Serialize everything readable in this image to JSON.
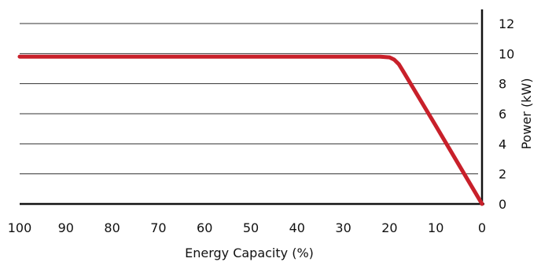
{
  "chart_data": {
    "type": "line",
    "xlabel": "Energy Capacity (%)",
    "ylabel": "Power (kW)",
    "xlim": [
      100,
      0
    ],
    "ylim": [
      0,
      12
    ],
    "x_ticks": [
      100,
      90,
      80,
      70,
      60,
      50,
      40,
      30,
      20,
      10,
      0
    ],
    "y_ticks": [
      0,
      2,
      4,
      6,
      8,
      10,
      12
    ],
    "grid": "horizontal",
    "series": [
      {
        "color": "#c8202a",
        "x": [
          100,
          90,
          80,
          70,
          60,
          50,
          40,
          30,
          22,
          20,
          19,
          18,
          17,
          10,
          5,
          0
        ],
        "y": [
          9.8,
          9.8,
          9.8,
          9.8,
          9.8,
          9.8,
          9.8,
          9.8,
          9.8,
          9.75,
          9.6,
          9.3,
          8.8,
          5.2,
          2.6,
          0
        ]
      }
    ],
    "axis_color": "#111111",
    "grid_color": "#333333"
  }
}
